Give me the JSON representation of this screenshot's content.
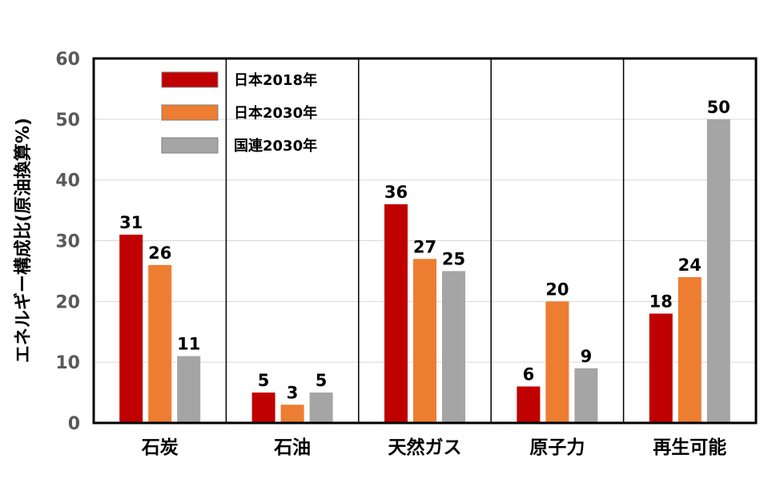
{
  "chart_data": {
    "type": "bar",
    "ylabel": "エネルギー構成比(原油換算%)",
    "xlabel": "",
    "ylim": [
      0,
      60
    ],
    "yticks": [
      0,
      10,
      20,
      30,
      40,
      50,
      60
    ],
    "grid": true,
    "legend_position": "top-left",
    "categories": [
      "石炭",
      "石油",
      "天然ガス",
      "原子力",
      "再生可能"
    ],
    "series": [
      {
        "name": "日本2018年",
        "color": "#C00000",
        "values": [
          31,
          5,
          36,
          6,
          18
        ]
      },
      {
        "name": "日本2030年",
        "color": "#ED7D31",
        "values": [
          26,
          3,
          27,
          20,
          24
        ]
      },
      {
        "name": "国連2030年",
        "color": "#A5A5A5",
        "values": [
          11,
          5,
          25,
          9,
          50
        ]
      }
    ]
  }
}
